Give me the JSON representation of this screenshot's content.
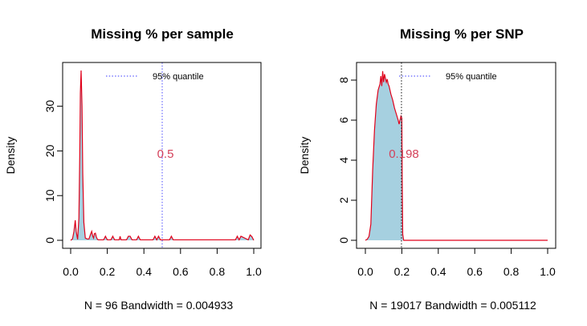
{
  "chart_data": [
    {
      "type": "area",
      "title": "Missing % per sample",
      "xlabel": "N = 96   Bandwidth = 0.004933",
      "ylabel": "Density",
      "xlim": [
        0.0,
        1.0
      ],
      "ylim": [
        0,
        38
      ],
      "x_ticks": [
        "0.0",
        "0.2",
        "0.4",
        "0.6",
        "0.8",
        "1.0"
      ],
      "y_ticks": [
        "0",
        "10",
        "20",
        "30"
      ],
      "fill_color": "#a6d0e0",
      "line_color": "#e0001a",
      "legend": {
        "label": "95% quantile",
        "line_color": "#3a3aff",
        "style": "dotted",
        "position": "top"
      },
      "quantile_line": {
        "x": 0.5,
        "label": "0.5",
        "color": "#d4415a"
      },
      "x": [
        0.0,
        0.01,
        0.018,
        0.025,
        0.03,
        0.038,
        0.045,
        0.05,
        0.053,
        0.057,
        0.062,
        0.066,
        0.072,
        0.08,
        0.09,
        0.1,
        0.11,
        0.115,
        0.12,
        0.125,
        0.13,
        0.135,
        0.14,
        0.145,
        0.15,
        0.16,
        0.18,
        0.19,
        0.2,
        0.21,
        0.22,
        0.23,
        0.24,
        0.25,
        0.265,
        0.27,
        0.275,
        0.28,
        0.29,
        0.305,
        0.315,
        0.325,
        0.335,
        0.345,
        0.36,
        0.37,
        0.38,
        0.39,
        0.45,
        0.46,
        0.47,
        0.48,
        0.49,
        0.5,
        0.51,
        0.54,
        0.55,
        0.56,
        0.9,
        0.91,
        0.92,
        0.93,
        0.97,
        0.98,
        0.99,
        1.0
      ],
      "y": [
        0,
        0.3,
        2.0,
        4.5,
        2.0,
        0.2,
        5.0,
        20.0,
        33.0,
        38.0,
        30.0,
        15.0,
        4.0,
        0.5,
        0.3,
        0.3,
        1.5,
        2.0,
        1.0,
        0.5,
        1.5,
        1.6,
        0.8,
        0.3,
        0.1,
        0.1,
        0.1,
        0.9,
        0.1,
        0.1,
        0.1,
        0.9,
        0.1,
        0.1,
        0.1,
        0.9,
        0.1,
        0.1,
        0.1,
        0.1,
        0.9,
        0.9,
        0.1,
        0.1,
        0.1,
        0.9,
        0.1,
        0.1,
        0.1,
        0.9,
        0.1,
        0.9,
        0.1,
        0.1,
        0.1,
        0.1,
        0.9,
        0.1,
        0.1,
        0.9,
        0.1,
        0.9,
        0.1,
        1.2,
        0.8,
        0
      ]
    },
    {
      "type": "area",
      "title": "Missing % per SNP",
      "xlabel": "N = 19017   Bandwidth = 0.005112",
      "ylabel": "Density",
      "xlim": [
        0.0,
        1.0
      ],
      "ylim": [
        0,
        8.4
      ],
      "x_ticks": [
        "0.0",
        "0.2",
        "0.4",
        "0.6",
        "0.8",
        "1.0"
      ],
      "y_ticks": [
        "0",
        "2",
        "4",
        "6",
        "8"
      ],
      "fill_color": "#a6d0e0",
      "line_color": "#e0001a",
      "legend": {
        "label": "95% quantile",
        "line_color": "#3a3aff",
        "style": "dotted",
        "position": "top"
      },
      "quantile_line": {
        "x": 0.198,
        "label": "0.198",
        "color": "#d4415a"
      },
      "x": [
        0.0,
        0.01,
        0.02,
        0.03,
        0.04,
        0.05,
        0.06,
        0.07,
        0.08,
        0.085,
        0.09,
        0.095,
        0.1,
        0.105,
        0.11,
        0.115,
        0.12,
        0.125,
        0.13,
        0.14,
        0.15,
        0.16,
        0.17,
        0.18,
        0.185,
        0.19,
        0.195,
        0.2,
        0.202,
        0.205,
        0.21
      ],
      "y": [
        0,
        0.05,
        0.2,
        0.8,
        3.5,
        5.5,
        6.8,
        7.5,
        7.8,
        8.2,
        7.7,
        8.45,
        7.9,
        8.3,
        8.1,
        7.9,
        8.05,
        7.8,
        7.7,
        7.3,
        7.0,
        6.6,
        6.3,
        6.0,
        5.8,
        6.0,
        6.2,
        6.1,
        3.0,
        0.3,
        0
      ]
    }
  ]
}
